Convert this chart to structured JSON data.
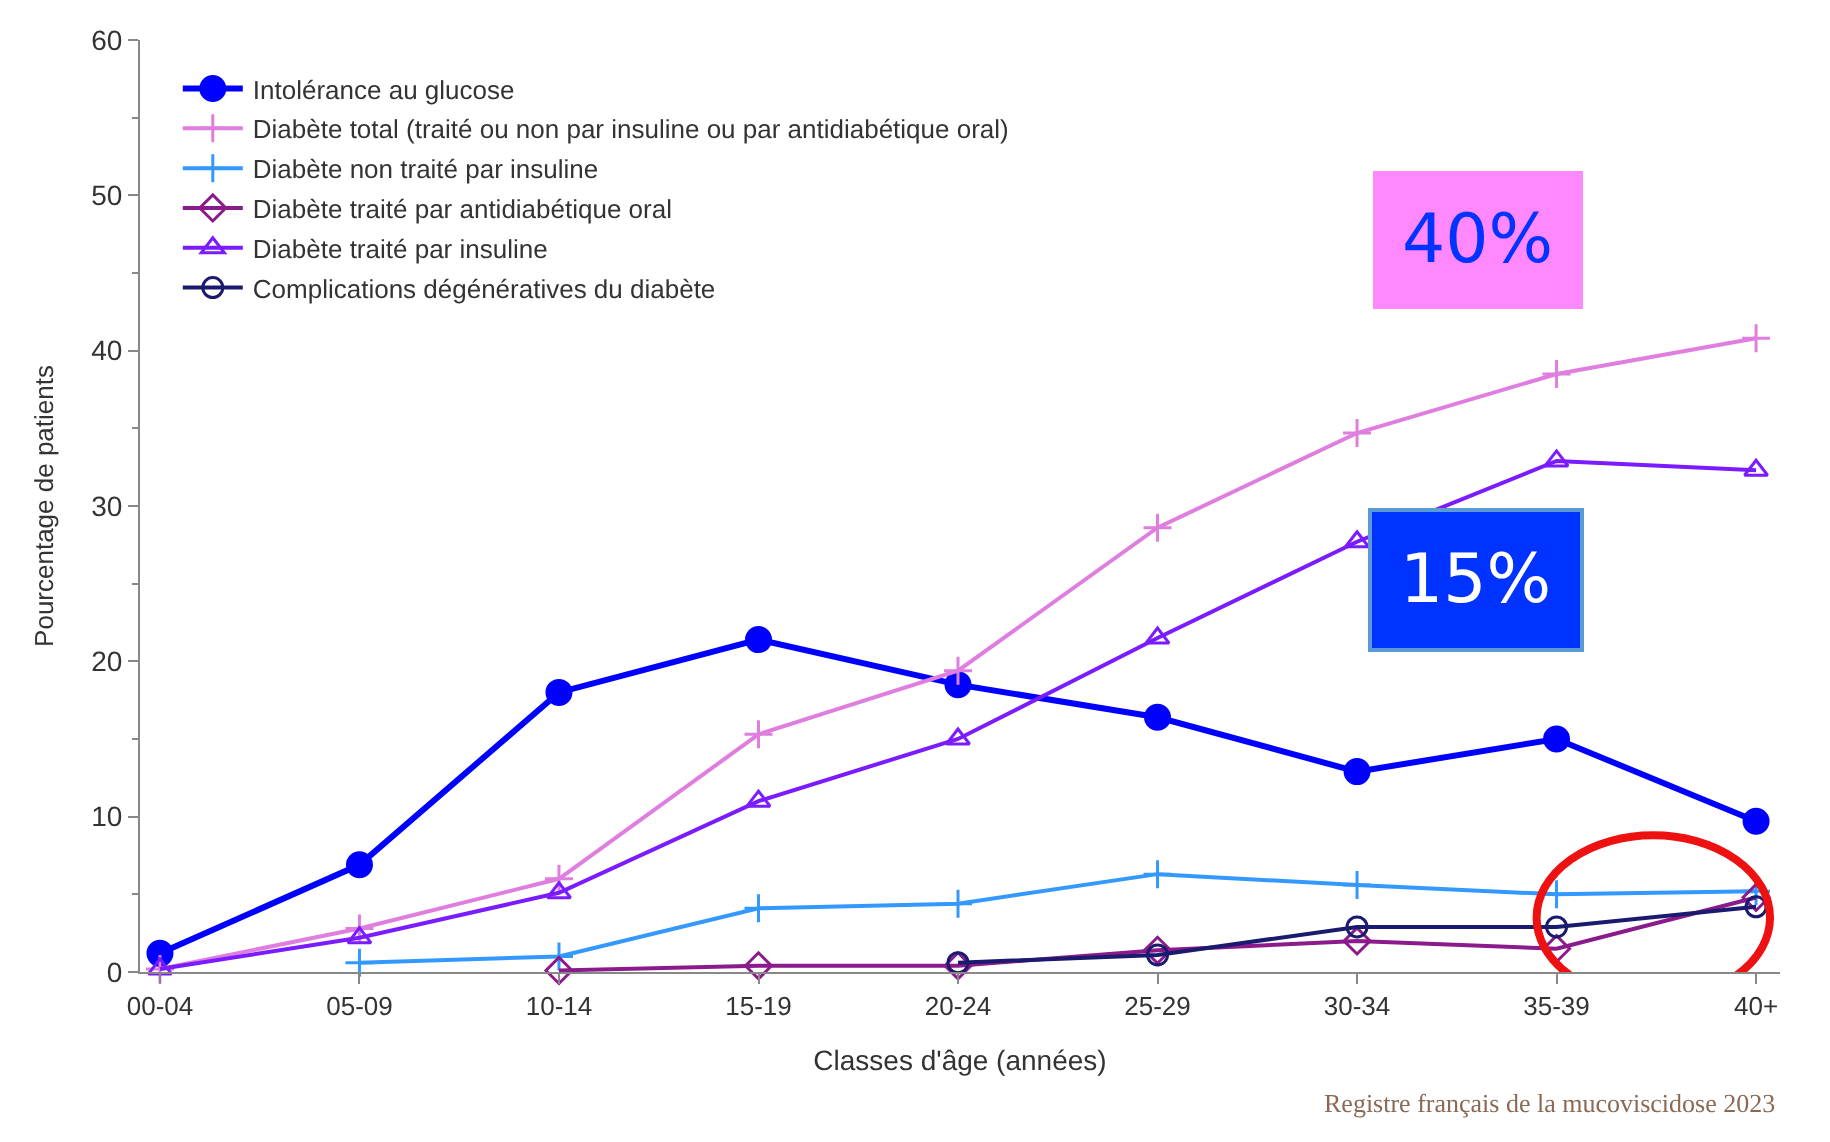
{
  "chart_data": {
    "type": "line",
    "xlabel": "Classes d'âge (années)",
    "ylabel": "Pourcentage de patients",
    "categories": [
      "00-04",
      "05-09",
      "10-14",
      "15-19",
      "20-24",
      "25-29",
      "30-34",
      "35-39",
      "40+"
    ],
    "series": [
      {
        "name": "Intolérance au glucose",
        "color": "#0000ff",
        "marker": "circle",
        "values": [
          1.2,
          6.9,
          18.0,
          21.4,
          18.5,
          16.4,
          12.9,
          15.0,
          9.7
        ]
      },
      {
        "name": "Diabète total (traité ou non par insuline ou par antidiabétique oral)",
        "color": "#e07ee0",
        "marker": "cross",
        "values": [
          0.2,
          2.8,
          6.0,
          15.3,
          19.4,
          28.6,
          34.7,
          38.5,
          40.8
        ]
      },
      {
        "name": "Diabète non traité par insuline",
        "color": "#3399ff",
        "marker": "cross",
        "values": [
          null,
          0.6,
          1.0,
          4.1,
          4.4,
          6.3,
          5.6,
          5.0,
          5.2
        ]
      },
      {
        "name": "Diabète traité par antidiabétique oral",
        "color": "#8b1a8b",
        "marker": "diamond",
        "values": [
          null,
          null,
          0.1,
          0.4,
          0.4,
          1.4,
          2.0,
          1.5,
          4.8
        ]
      },
      {
        "name": "Diabète traité par insuline",
        "color": "#7a1cff",
        "marker": "triangle",
        "values": [
          0.2,
          2.2,
          5.1,
          11.0,
          15.0,
          21.5,
          27.7,
          32.9,
          32.3
        ]
      },
      {
        "name": "Complications dégénératives du diabète",
        "color": "#1a1a6e",
        "marker": "circle",
        "values": [
          null,
          null,
          null,
          null,
          0.6,
          1.1,
          2.9,
          2.9,
          4.2
        ]
      }
    ],
    "ylim": [
      0,
      60
    ],
    "yticks": [
      0,
      10,
      20,
      30,
      40,
      50,
      60
    ],
    "legend": "top left",
    "annotations": [
      "40%",
      "15%",
      "Registre français de la mucoviscidose 2023"
    ]
  }
}
